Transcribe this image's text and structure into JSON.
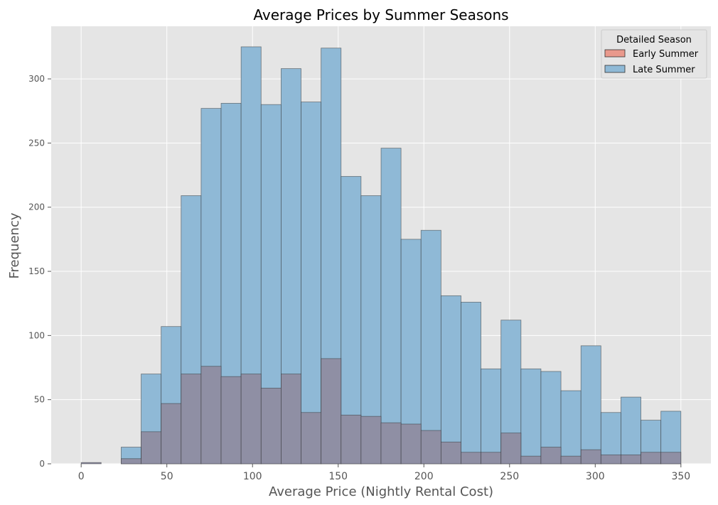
{
  "chart_data": {
    "type": "histogram",
    "title": "Average Prices by Summer Seasons",
    "xlabel": "Average Price (Nightly Rental Cost)",
    "ylabel": "Frequency",
    "xlim": [
      -17.5,
      367.5
    ],
    "ylim": [
      0,
      341
    ],
    "xticks": [
      0,
      50,
      100,
      150,
      200,
      250,
      300,
      350
    ],
    "yticks": [
      0,
      50,
      100,
      150,
      200,
      250,
      300
    ],
    "grid": true,
    "legend_title": "Detailed Season",
    "legend_position": "top-right",
    "bin_width": 11.67,
    "bin_edges": [
      0,
      11.67,
      23.33,
      35,
      46.67,
      58.33,
      70,
      81.67,
      93.33,
      105,
      116.67,
      128.33,
      140,
      151.67,
      163.33,
      175,
      186.67,
      198.33,
      210,
      221.67,
      233.33,
      245,
      256.67,
      268.33,
      280,
      291.67,
      303.33,
      315,
      326.67,
      338.33,
      350
    ],
    "series": [
      {
        "name": "Early Summer",
        "color": "#e24a33",
        "values": [
          1,
          0,
          4,
          25,
          47,
          70,
          76,
          68,
          70,
          59,
          70,
          40,
          82,
          38,
          37,
          32,
          31,
          26,
          17,
          9,
          9,
          24,
          6,
          13,
          6,
          11,
          7,
          7,
          9,
          9
        ]
      },
      {
        "name": "Late Summer",
        "color": "#348abd",
        "values": [
          0,
          0,
          13,
          70,
          107,
          209,
          277,
          281,
          325,
          280,
          308,
          282,
          324,
          224,
          209,
          246,
          175,
          182,
          131,
          126,
          74,
          112,
          74,
          72,
          57,
          92,
          40,
          52,
          34,
          41
        ]
      }
    ],
    "background_color": "#e5e5e5",
    "grid_color": "#ffffff",
    "overlap_color": "#8f8fa4"
  }
}
